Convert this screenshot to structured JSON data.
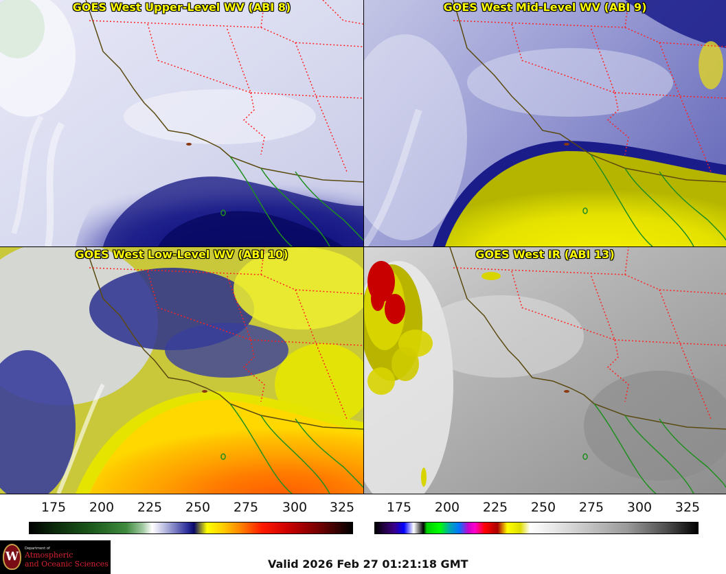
{
  "panels": [
    {
      "title": "GOES West Upper-Level WV (ABI 8)",
      "style": "upper"
    },
    {
      "title": "GOES West Mid-Level WV (ABI 9)",
      "style": "mid"
    },
    {
      "title": "GOES West Low-Level WV (ABI 10)",
      "style": "low"
    },
    {
      "title": "GOES West IR (ABI 13)",
      "style": "ir"
    }
  ],
  "colorbars": [
    {
      "ticks": [
        "175",
        "200",
        "225",
        "250",
        "275",
        "300",
        "325"
      ],
      "palette": "water-vapor"
    },
    {
      "ticks": [
        "175",
        "200",
        "225",
        "250",
        "275",
        "300",
        "325"
      ],
      "palette": "infrared"
    }
  ],
  "logo": {
    "small_text": "Department of",
    "line1": "Atmospheric",
    "line2": "and Oceanic Sciences",
    "seal_letter": "W"
  },
  "valid_time": "Valid 2026 Feb 27 01:21:18 GMT",
  "colors": {
    "title_yellow": "#ffff00",
    "state_borders": "#ff2020",
    "coastline": "#5a4a10",
    "mexico_border": "#1e8f1e"
  }
}
